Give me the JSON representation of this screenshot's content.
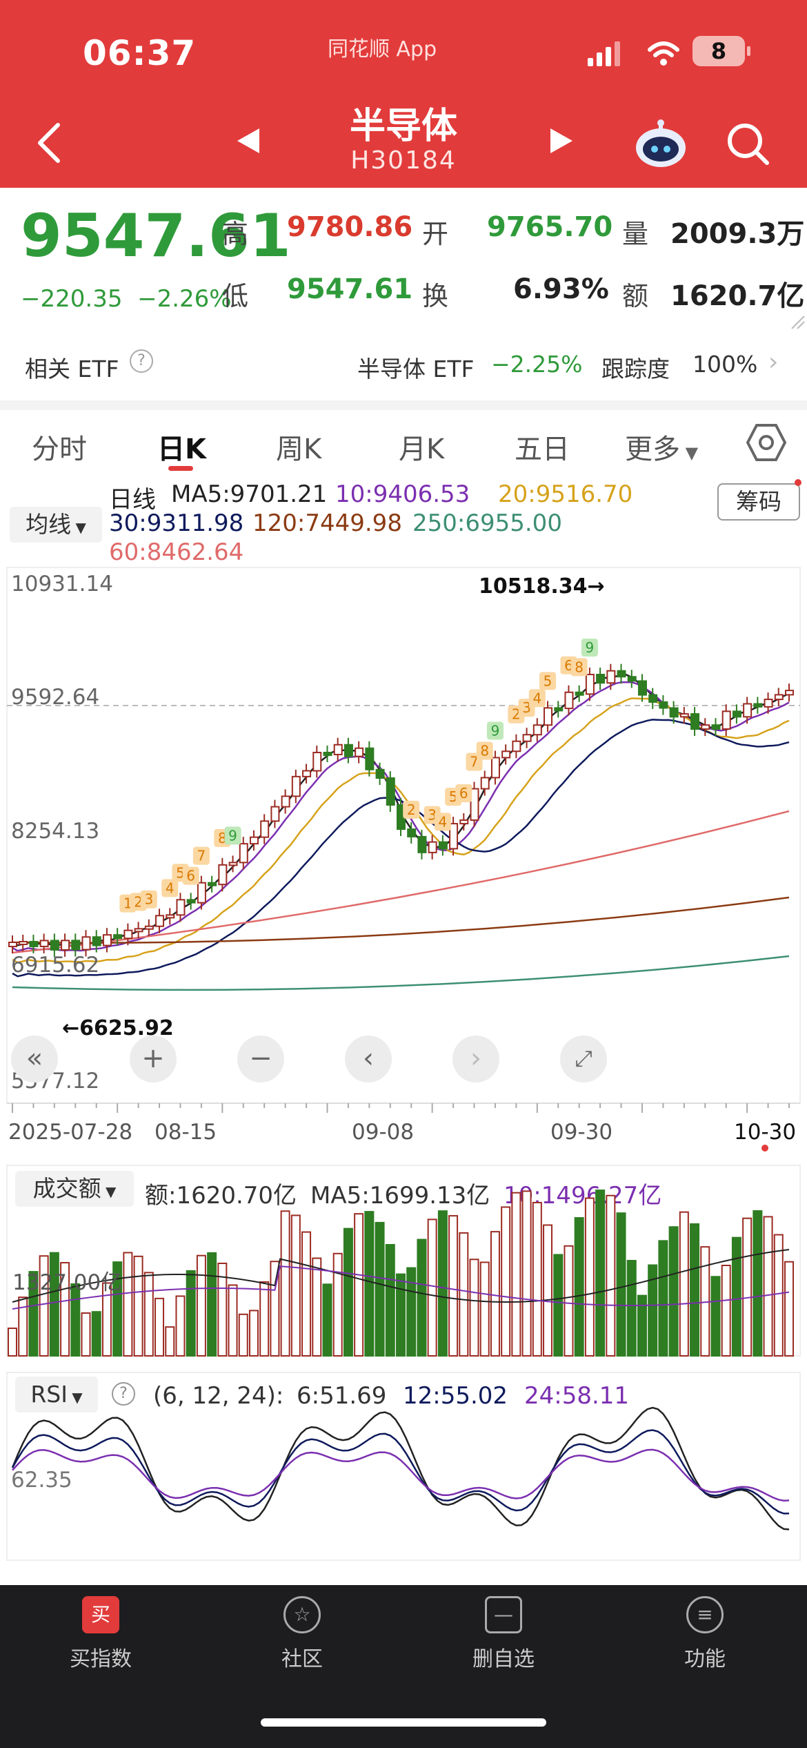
{
  "status": {
    "time": "06:37",
    "app": "同花顺 App",
    "battery": "8"
  },
  "header": {
    "title": "半导体",
    "code": "H30184"
  },
  "quote": {
    "price": "9547.61",
    "change": "−220.35",
    "change_pct": "−2.26%",
    "high_label": "高",
    "high": "9780.86",
    "open_label": "开",
    "open": "9765.70",
    "volume_label": "量",
    "volume": "2009.3万",
    "low_label": "低",
    "low": "9547.61",
    "turnover_label": "换",
    "turnover": "6.93%",
    "amount_label": "额",
    "amount": "1620.7亿"
  },
  "etf": {
    "label": "相关 ETF",
    "name": "半导体 ETF",
    "change": "−2.25%",
    "tracking_label": "跟踪度",
    "tracking": "100%"
  },
  "tabs": [
    {
      "label": "分时"
    },
    {
      "label": "日K"
    },
    {
      "label": "周K"
    },
    {
      "label": "月K"
    },
    {
      "label": "五日"
    },
    {
      "label": "更多"
    }
  ],
  "kline": {
    "period": "日线",
    "indicator_select": "均线",
    "chip_button": "筹码",
    "ma": {
      "ma5": "MA5:9701.21",
      "ma10": "10:9406.53",
      "ma20": "20:9516.70",
      "ma30": "30:9311.98",
      "ma120": "120:7449.98",
      "ma250": "250:6955.00",
      "ma60": "60:8462.64"
    },
    "colors": {
      "ma5": "#222222",
      "ma10": "#7b2fb0",
      "ma20": "#d6a21a",
      "ma30": "#0e1a5c",
      "ma60": "#e06a6a",
      "ma120": "#8b3a12",
      "ma250": "#3d8f72",
      "up": "#9b2b22",
      "down": "#2e7d22"
    },
    "y_axis": [
      "10931.14",
      "9592.64",
      "8254.13",
      "6915.62",
      "5577.12"
    ],
    "x_axis": [
      "2025-07-28",
      "08-15",
      "09-08",
      "09-30",
      "10-30"
    ],
    "high_mark": "10518.34→",
    "low_mark": "←6625.92"
  },
  "volume": {
    "select": "成交额",
    "amount": "额:1620.70亿",
    "ma5": "MA5:1699.13亿",
    "ma10": "10:1496.27亿",
    "axis_label": "1327.00亿"
  },
  "rsi": {
    "select": "RSI",
    "params": "(6, 12, 24):",
    "rsi6": "6:51.69",
    "rsi12": "12:55.02",
    "rsi24": "24:58.11",
    "axis_label": "62.35"
  },
  "nav": [
    {
      "label": "买指数",
      "icon": "买"
    },
    {
      "label": "社区",
      "icon": "☆"
    },
    {
      "label": "删自选",
      "icon": "—"
    },
    {
      "label": "功能",
      "icon": "≡"
    }
  ]
}
